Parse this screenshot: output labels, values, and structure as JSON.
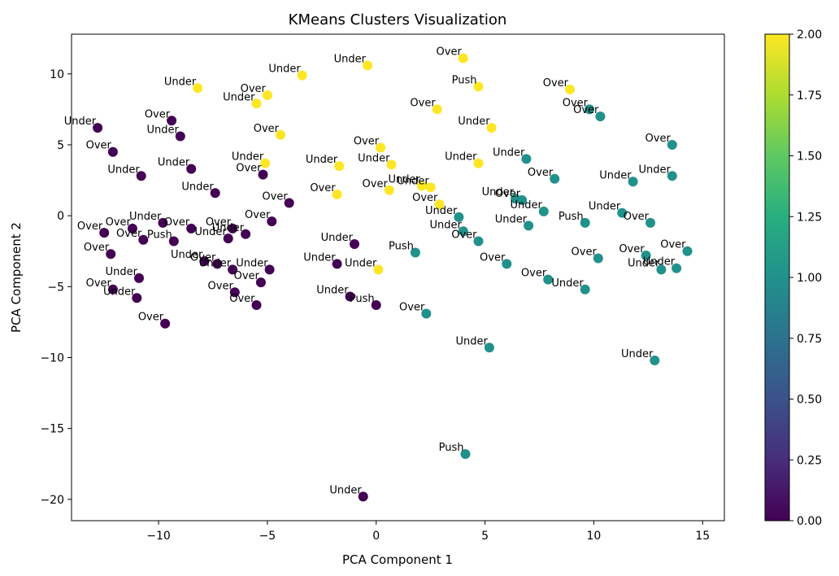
{
  "chart_data": {
    "type": "scatter",
    "title": "KMeans Clusters Visualization",
    "xlabel": "PCA Component 1",
    "ylabel": "PCA Component 2",
    "xlim": [
      -14,
      16
    ],
    "ylim": [
      -21.5,
      12.8
    ],
    "xticks": [
      -10,
      -5,
      0,
      5,
      10,
      15
    ],
    "yticks": [
      10,
      5,
      0,
      -5,
      -10,
      -15,
      -20
    ],
    "xtick_labels": [
      "−10",
      "−5",
      "0",
      "5",
      "10",
      "15"
    ],
    "ytick_labels": [
      "10",
      "5",
      "0",
      "−5",
      "−10",
      "−15",
      "−20"
    ],
    "grid": false,
    "colorbar": {
      "min": 0.0,
      "max": 2.0,
      "ticks": [
        "0.00",
        "0.25",
        "0.50",
        "0.75",
        "1.00",
        "1.25",
        "1.50",
        "1.75",
        "2.00"
      ],
      "colormap": "viridis"
    },
    "cluster_colors": [
      "#440154",
      "#21918c",
      "#fde725"
    ],
    "points": [
      {
        "x": -12.8,
        "y": 6.2,
        "cluster": 0,
        "label": "Under"
      },
      {
        "x": -12.1,
        "y": 4.5,
        "cluster": 0,
        "label": "Over"
      },
      {
        "x": -10.8,
        "y": 2.8,
        "cluster": 0,
        "label": "Under"
      },
      {
        "x": -9.4,
        "y": 6.7,
        "cluster": 0,
        "label": "Over"
      },
      {
        "x": -9.0,
        "y": 5.6,
        "cluster": 0,
        "label": "Under"
      },
      {
        "x": -8.5,
        "y": 3.3,
        "cluster": 0,
        "label": "Under"
      },
      {
        "x": -7.4,
        "y": 1.6,
        "cluster": 0,
        "label": "Under"
      },
      {
        "x": -5.2,
        "y": 2.9,
        "cluster": 0,
        "label": "Over"
      },
      {
        "x": -4.0,
        "y": 0.9,
        "cluster": 0,
        "label": "Over"
      },
      {
        "x": -12.5,
        "y": -1.2,
        "cluster": 0,
        "label": "Over"
      },
      {
        "x": -11.2,
        "y": -0.9,
        "cluster": 0,
        "label": "Over"
      },
      {
        "x": -10.7,
        "y": -1.7,
        "cluster": 0,
        "label": "Over"
      },
      {
        "x": -9.8,
        "y": -0.5,
        "cluster": 0,
        "label": "Under"
      },
      {
        "x": -9.3,
        "y": -1.8,
        "cluster": 0,
        "label": "Push"
      },
      {
        "x": -8.5,
        "y": -0.9,
        "cluster": 0,
        "label": "Over"
      },
      {
        "x": -6.6,
        "y": -0.9,
        "cluster": 0,
        "label": "Over"
      },
      {
        "x": -6.8,
        "y": -1.6,
        "cluster": 0,
        "label": "Under"
      },
      {
        "x": -6.0,
        "y": -1.3,
        "cluster": 0,
        "label": "Under"
      },
      {
        "x": -4.8,
        "y": -0.4,
        "cluster": 0,
        "label": "Over"
      },
      {
        "x": -12.2,
        "y": -2.7,
        "cluster": 0,
        "label": "Over"
      },
      {
        "x": -10.9,
        "y": -4.4,
        "cluster": 0,
        "label": "Under"
      },
      {
        "x": -12.1,
        "y": -5.2,
        "cluster": 0,
        "label": "Over"
      },
      {
        "x": -11.0,
        "y": -5.8,
        "cluster": 0,
        "label": "Under"
      },
      {
        "x": -9.7,
        "y": -7.6,
        "cluster": 0,
        "label": "Over"
      },
      {
        "x": -7.9,
        "y": -3.2,
        "cluster": 0,
        "label": "Under"
      },
      {
        "x": -7.3,
        "y": -3.4,
        "cluster": 0,
        "label": "Over"
      },
      {
        "x": -6.6,
        "y": -3.8,
        "cluster": 0,
        "label": "Under"
      },
      {
        "x": -4.9,
        "y": -3.8,
        "cluster": 0,
        "label": "Under"
      },
      {
        "x": -5.3,
        "y": -4.7,
        "cluster": 0,
        "label": "Over"
      },
      {
        "x": -6.5,
        "y": -5.4,
        "cluster": 0,
        "label": "Over"
      },
      {
        "x": -5.5,
        "y": -6.3,
        "cluster": 0,
        "label": "Over"
      },
      {
        "x": -1.0,
        "y": -2.0,
        "cluster": 0,
        "label": "Under"
      },
      {
        "x": -1.8,
        "y": -3.4,
        "cluster": 0,
        "label": "Under"
      },
      {
        "x": -1.2,
        "y": -5.7,
        "cluster": 0,
        "label": "Under"
      },
      {
        "x": 0.0,
        "y": -6.3,
        "cluster": 0,
        "label": "Push"
      },
      {
        "x": -0.6,
        "y": -19.8,
        "cluster": 0,
        "label": "Under"
      },
      {
        "x": -8.2,
        "y": 9.0,
        "cluster": 2,
        "label": "Under"
      },
      {
        "x": -3.4,
        "y": 9.9,
        "cluster": 2,
        "label": "Under"
      },
      {
        "x": -0.4,
        "y": 10.6,
        "cluster": 2,
        "label": "Under"
      },
      {
        "x": -5.0,
        "y": 8.5,
        "cluster": 2,
        "label": "Over"
      },
      {
        "x": -5.5,
        "y": 7.9,
        "cluster": 2,
        "label": "Under"
      },
      {
        "x": -4.4,
        "y": 5.7,
        "cluster": 2,
        "label": "Over"
      },
      {
        "x": -5.1,
        "y": 3.7,
        "cluster": 2,
        "label": "Under"
      },
      {
        "x": -1.7,
        "y": 3.5,
        "cluster": 2,
        "label": "Under"
      },
      {
        "x": 0.2,
        "y": 4.8,
        "cluster": 2,
        "label": "Over"
      },
      {
        "x": 0.7,
        "y": 3.6,
        "cluster": 2,
        "label": "Under"
      },
      {
        "x": -1.8,
        "y": 1.5,
        "cluster": 2,
        "label": "Over"
      },
      {
        "x": 0.6,
        "y": 1.8,
        "cluster": 2,
        "label": "Over"
      },
      {
        "x": 2.1,
        "y": 2.1,
        "cluster": 2,
        "label": "Under"
      },
      {
        "x": 2.5,
        "y": 2.0,
        "cluster": 2,
        "label": "Under"
      },
      {
        "x": 2.9,
        "y": 0.8,
        "cluster": 2,
        "label": "Over"
      },
      {
        "x": 2.8,
        "y": 7.5,
        "cluster": 2,
        "label": "Over"
      },
      {
        "x": 4.0,
        "y": 11.1,
        "cluster": 2,
        "label": "Over"
      },
      {
        "x": 4.7,
        "y": 9.1,
        "cluster": 2,
        "label": "Push"
      },
      {
        "x": 5.3,
        "y": 6.2,
        "cluster": 2,
        "label": "Under"
      },
      {
        "x": 4.7,
        "y": 3.7,
        "cluster": 2,
        "label": "Under"
      },
      {
        "x": 8.9,
        "y": 8.9,
        "cluster": 2,
        "label": "Over"
      },
      {
        "x": 0.1,
        "y": -3.8,
        "cluster": 2,
        "label": "Under"
      },
      {
        "x": 9.8,
        "y": 7.5,
        "cluster": 1,
        "label": "Over"
      },
      {
        "x": 10.3,
        "y": 7.0,
        "cluster": 1,
        "label": "Over"
      },
      {
        "x": 13.6,
        "y": 5.0,
        "cluster": 1,
        "label": "Over"
      },
      {
        "x": 13.6,
        "y": 2.8,
        "cluster": 1,
        "label": "Under"
      },
      {
        "x": 11.8,
        "y": 2.4,
        "cluster": 1,
        "label": "Under"
      },
      {
        "x": 6.9,
        "y": 4.0,
        "cluster": 1,
        "label": "Under"
      },
      {
        "x": 8.2,
        "y": 2.6,
        "cluster": 1,
        "label": "Over"
      },
      {
        "x": 6.4,
        "y": 1.2,
        "cluster": 1,
        "label": "Under"
      },
      {
        "x": 6.7,
        "y": 1.1,
        "cluster": 1,
        "label": "Over"
      },
      {
        "x": 7.7,
        "y": 0.3,
        "cluster": 1,
        "label": "Under"
      },
      {
        "x": 3.8,
        "y": -0.1,
        "cluster": 1,
        "label": "Under"
      },
      {
        "x": 4.0,
        "y": -1.1,
        "cluster": 1,
        "label": "Under"
      },
      {
        "x": 4.7,
        "y": -1.8,
        "cluster": 1,
        "label": "Over"
      },
      {
        "x": 7.0,
        "y": -0.7,
        "cluster": 1,
        "label": "Under"
      },
      {
        "x": 9.6,
        "y": -0.5,
        "cluster": 1,
        "label": "Push"
      },
      {
        "x": 11.3,
        "y": 0.2,
        "cluster": 1,
        "label": "Under"
      },
      {
        "x": 12.6,
        "y": -0.5,
        "cluster": 1,
        "label": "Over"
      },
      {
        "x": 1.8,
        "y": -2.6,
        "cluster": 1,
        "label": "Push"
      },
      {
        "x": 6.0,
        "y": -3.4,
        "cluster": 1,
        "label": "Over"
      },
      {
        "x": 7.9,
        "y": -4.5,
        "cluster": 1,
        "label": "Over"
      },
      {
        "x": 9.6,
        "y": -5.2,
        "cluster": 1,
        "label": "Under"
      },
      {
        "x": 10.2,
        "y": -3.0,
        "cluster": 1,
        "label": "Over"
      },
      {
        "x": 12.4,
        "y": -2.8,
        "cluster": 1,
        "label": "Over"
      },
      {
        "x": 13.1,
        "y": -3.8,
        "cluster": 1,
        "label": "Under"
      },
      {
        "x": 13.8,
        "y": -3.7,
        "cluster": 1,
        "label": "Under"
      },
      {
        "x": 14.3,
        "y": -2.5,
        "cluster": 1,
        "label": "Over"
      },
      {
        "x": 2.3,
        "y": -6.9,
        "cluster": 1,
        "label": "Over"
      },
      {
        "x": 5.2,
        "y": -9.3,
        "cluster": 1,
        "label": "Under"
      },
      {
        "x": 12.8,
        "y": -10.2,
        "cluster": 1,
        "label": "Under"
      },
      {
        "x": 4.1,
        "y": -16.8,
        "cluster": 1,
        "label": "Push"
      }
    ]
  }
}
